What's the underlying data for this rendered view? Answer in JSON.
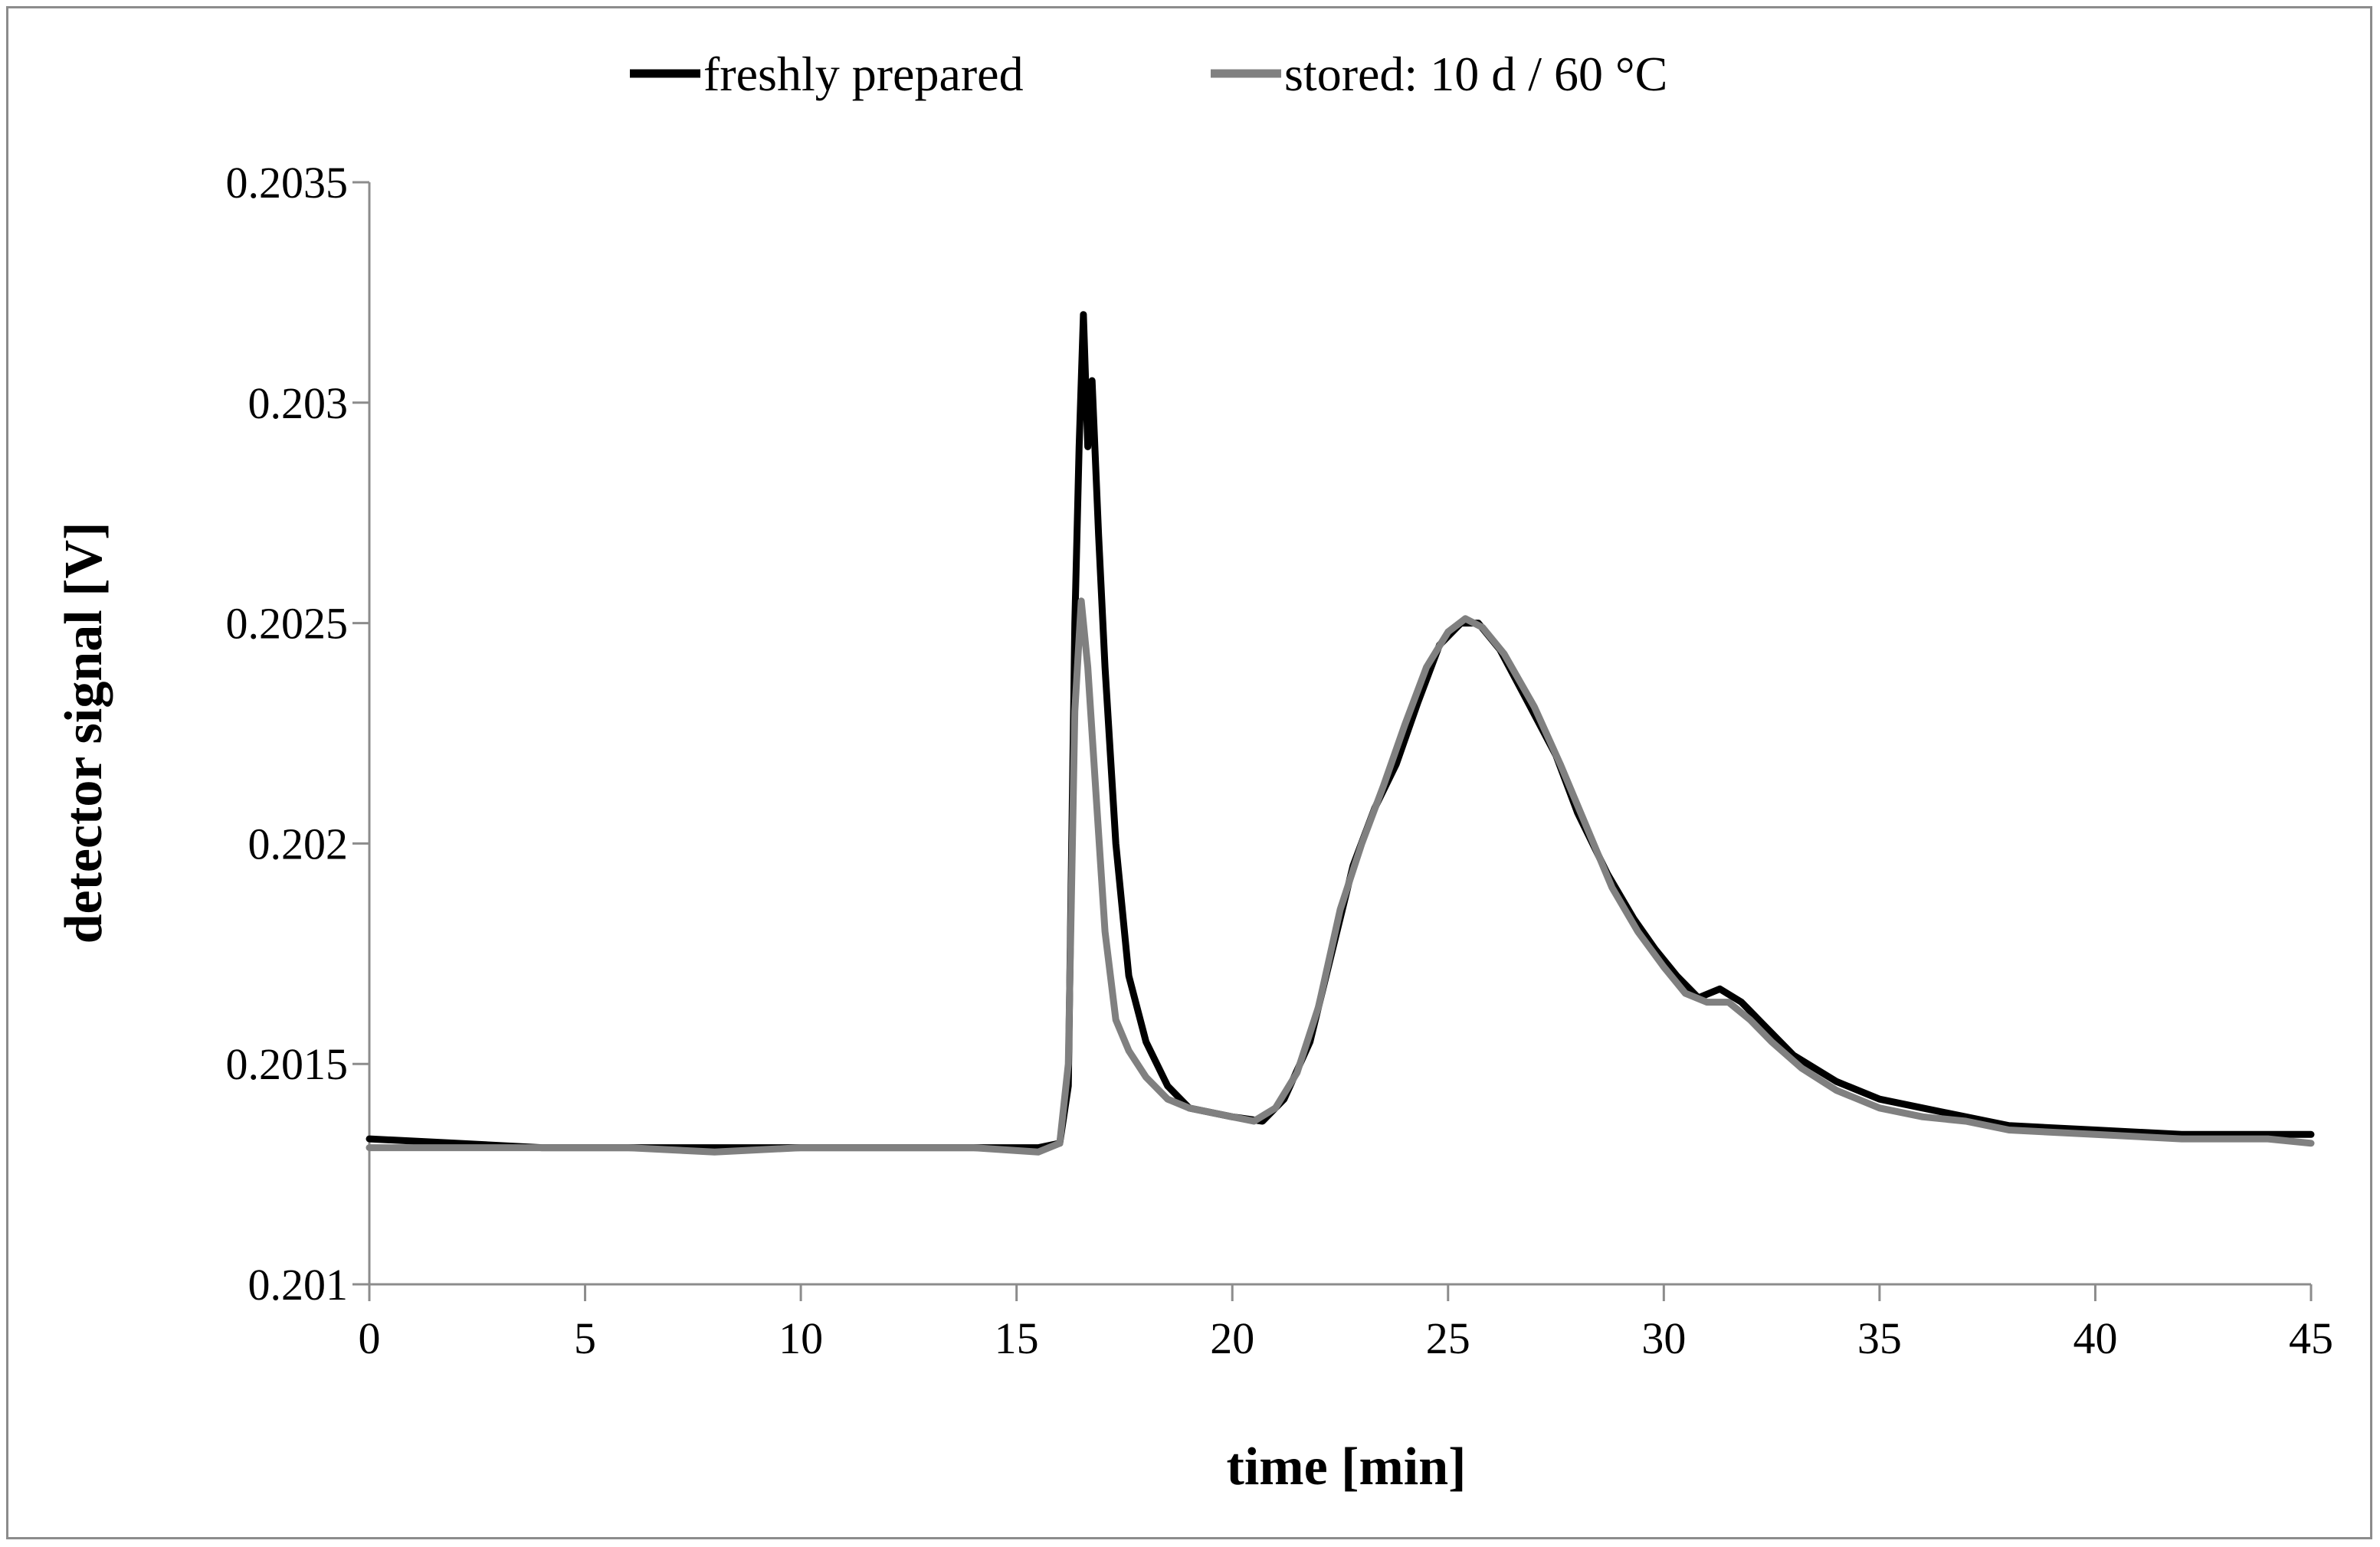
{
  "chart_data": {
    "type": "line",
    "title": "",
    "xlabel": "time [min]",
    "ylabel": "detector signal [V]",
    "xlim": [
      0,
      45
    ],
    "ylim": [
      0.201,
      0.2035
    ],
    "x_ticks": [
      0,
      5,
      10,
      15,
      20,
      25,
      30,
      35,
      40,
      45
    ],
    "x_tick_labels": [
      "0",
      "5",
      "10",
      "15",
      "20",
      "25",
      "30",
      "35",
      "40",
      "45"
    ],
    "y_ticks": [
      0.201,
      0.2015,
      0.202,
      0.2025,
      0.203,
      0.2035
    ],
    "y_tick_labels": [
      "0.201",
      "0.2015",
      "0.202",
      "0.2025",
      "0.203",
      "0.2035"
    ],
    "grid": false,
    "legend_position": "top",
    "series": [
      {
        "name": "freshly prepared",
        "color": "#000000",
        "points": [
          [
            0,
            0.20133
          ],
          [
            2,
            0.20132
          ],
          [
            4,
            0.20131
          ],
          [
            6,
            0.20131
          ],
          [
            8,
            0.20131
          ],
          [
            10,
            0.20131
          ],
          [
            12,
            0.20131
          ],
          [
            14,
            0.20131
          ],
          [
            15.5,
            0.20131
          ],
          [
            16.0,
            0.20132
          ],
          [
            16.2,
            0.20145
          ],
          [
            16.35,
            0.2025
          ],
          [
            16.45,
            0.2029
          ],
          [
            16.55,
            0.2032
          ],
          [
            16.65,
            0.2029
          ],
          [
            16.75,
            0.20305
          ],
          [
            16.9,
            0.2027
          ],
          [
            17.05,
            0.2024
          ],
          [
            17.3,
            0.202
          ],
          [
            17.6,
            0.2017
          ],
          [
            18.0,
            0.20155
          ],
          [
            18.5,
            0.20145
          ],
          [
            19.0,
            0.2014
          ],
          [
            20.0,
            0.20138
          ],
          [
            20.7,
            0.20137
          ],
          [
            21.2,
            0.20142
          ],
          [
            21.8,
            0.20155
          ],
          [
            22.3,
            0.20175
          ],
          [
            22.8,
            0.20195
          ],
          [
            23.3,
            0.20208
          ],
          [
            23.8,
            0.20218
          ],
          [
            24.3,
            0.20232
          ],
          [
            24.8,
            0.20245
          ],
          [
            25.3,
            0.2025
          ],
          [
            25.7,
            0.2025
          ],
          [
            26.2,
            0.20244
          ],
          [
            26.8,
            0.20233
          ],
          [
            27.5,
            0.2022
          ],
          [
            28.0,
            0.20207
          ],
          [
            28.7,
            0.20193
          ],
          [
            29.3,
            0.20183
          ],
          [
            29.8,
            0.20176
          ],
          [
            30.3,
            0.2017
          ],
          [
            30.8,
            0.20165
          ],
          [
            31.3,
            0.20167
          ],
          [
            31.8,
            0.20164
          ],
          [
            32.3,
            0.20159
          ],
          [
            33.0,
            0.20152
          ],
          [
            34.0,
            0.20146
          ],
          [
            35.0,
            0.20142
          ],
          [
            36.0,
            0.2014
          ],
          [
            37.0,
            0.20138
          ],
          [
            38.0,
            0.20136
          ],
          [
            40.0,
            0.20135
          ],
          [
            42.0,
            0.20134
          ],
          [
            44.0,
            0.20134
          ],
          [
            45.0,
            0.20134
          ]
        ]
      },
      {
        "name": "stored: 10 d / 60 °C",
        "color": "#808080",
        "points": [
          [
            0,
            0.20131
          ],
          [
            2,
            0.20131
          ],
          [
            4,
            0.20131
          ],
          [
            6,
            0.20131
          ],
          [
            8,
            0.2013
          ],
          [
            10,
            0.20131
          ],
          [
            12,
            0.20131
          ],
          [
            14,
            0.20131
          ],
          [
            15.5,
            0.2013
          ],
          [
            16.0,
            0.20132
          ],
          [
            16.2,
            0.2015
          ],
          [
            16.35,
            0.2023
          ],
          [
            16.5,
            0.20255
          ],
          [
            16.65,
            0.2024
          ],
          [
            16.85,
            0.2021
          ],
          [
            17.05,
            0.2018
          ],
          [
            17.3,
            0.2016
          ],
          [
            17.6,
            0.20153
          ],
          [
            18.0,
            0.20147
          ],
          [
            18.5,
            0.20142
          ],
          [
            19.0,
            0.2014
          ],
          [
            20.0,
            0.20138
          ],
          [
            20.5,
            0.20137
          ],
          [
            21.0,
            0.2014
          ],
          [
            21.5,
            0.20148
          ],
          [
            22.0,
            0.20163
          ],
          [
            22.5,
            0.20185
          ],
          [
            23.0,
            0.202
          ],
          [
            23.5,
            0.20213
          ],
          [
            24.0,
            0.20227
          ],
          [
            24.5,
            0.2024
          ],
          [
            25.0,
            0.20248
          ],
          [
            25.4,
            0.20251
          ],
          [
            25.8,
            0.20249
          ],
          [
            26.3,
            0.20243
          ],
          [
            27.0,
            0.20231
          ],
          [
            27.6,
            0.20218
          ],
          [
            28.2,
            0.20204
          ],
          [
            28.8,
            0.2019
          ],
          [
            29.4,
            0.2018
          ],
          [
            30.0,
            0.20172
          ],
          [
            30.5,
            0.20166
          ],
          [
            31.0,
            0.20164
          ],
          [
            31.5,
            0.20164
          ],
          [
            32.0,
            0.2016
          ],
          [
            32.5,
            0.20155
          ],
          [
            33.2,
            0.20149
          ],
          [
            34.0,
            0.20144
          ],
          [
            35.0,
            0.2014
          ],
          [
            36.0,
            0.20138
          ],
          [
            37.0,
            0.20137
          ],
          [
            38.0,
            0.20135
          ],
          [
            40.0,
            0.20134
          ],
          [
            42.0,
            0.20133
          ],
          [
            44.0,
            0.20133
          ],
          [
            45.0,
            0.20132
          ]
        ]
      }
    ]
  }
}
